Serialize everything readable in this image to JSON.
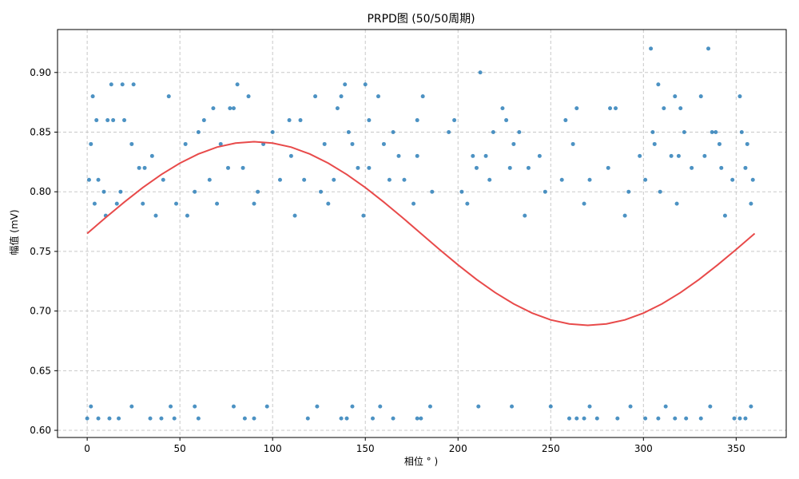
{
  "chart_data": {
    "type": "scatter",
    "title": "PRPD图 (50/50周期)",
    "xlabel": "相位 ° )",
    "ylabel": "幅值 (mV)",
    "xlim": [
      -16,
      377
    ],
    "ylim": [
      0.594,
      0.936
    ],
    "x_ticks": [
      0,
      50,
      100,
      150,
      200,
      250,
      300,
      350
    ],
    "y_ticks": [
      0.6,
      0.65,
      0.7,
      0.75,
      0.8,
      0.85,
      0.9
    ],
    "grid": true,
    "legend": "none",
    "colors": {
      "scatter": "#1f77b4",
      "curve": "#e84a4a",
      "grid": "#c8c8c8",
      "axis": "#000000"
    },
    "series": [
      {
        "type": "scatter",
        "points": [
          [
            304,
            0.92
          ],
          [
            335,
            0.92
          ],
          [
            212,
            0.9
          ],
          [
            3,
            0.88
          ],
          [
            13,
            0.89
          ],
          [
            19,
            0.89
          ],
          [
            25,
            0.89
          ],
          [
            44,
            0.88
          ],
          [
            81,
            0.89
          ],
          [
            87,
            0.88
          ],
          [
            137,
            0.88
          ],
          [
            139,
            0.89
          ],
          [
            150,
            0.89
          ],
          [
            157,
            0.88
          ],
          [
            181,
            0.88
          ],
          [
            308,
            0.89
          ],
          [
            317,
            0.88
          ],
          [
            331,
            0.88
          ],
          [
            352,
            0.88
          ],
          [
            5,
            0.86
          ],
          [
            11,
            0.86
          ],
          [
            14,
            0.86
          ],
          [
            20,
            0.86
          ],
          [
            60,
            0.85
          ],
          [
            63,
            0.86
          ],
          [
            68,
            0.87
          ],
          [
            77,
            0.87
          ],
          [
            79,
            0.87
          ],
          [
            100,
            0.85
          ],
          [
            109,
            0.86
          ],
          [
            115,
            0.86
          ],
          [
            123,
            0.88
          ],
          [
            135,
            0.87
          ],
          [
            141,
            0.85
          ],
          [
            152,
            0.86
          ],
          [
            165,
            0.85
          ],
          [
            178,
            0.86
          ],
          [
            195,
            0.85
          ],
          [
            198,
            0.86
          ],
          [
            219,
            0.85
          ],
          [
            224,
            0.87
          ],
          [
            226,
            0.86
          ],
          [
            233,
            0.85
          ],
          [
            258,
            0.86
          ],
          [
            264,
            0.87
          ],
          [
            282,
            0.87
          ],
          [
            285,
            0.87
          ],
          [
            305,
            0.85
          ],
          [
            311,
            0.87
          ],
          [
            320,
            0.87
          ],
          [
            322,
            0.85
          ],
          [
            337,
            0.85
          ],
          [
            339,
            0.85
          ],
          [
            353,
            0.85
          ],
          [
            2,
            0.84
          ],
          [
            24,
            0.84
          ],
          [
            35,
            0.83
          ],
          [
            53,
            0.84
          ],
          [
            72,
            0.84
          ],
          [
            95,
            0.84
          ],
          [
            110,
            0.83
          ],
          [
            128,
            0.84
          ],
          [
            143,
            0.84
          ],
          [
            160,
            0.84
          ],
          [
            168,
            0.83
          ],
          [
            178,
            0.83
          ],
          [
            208,
            0.83
          ],
          [
            215,
            0.83
          ],
          [
            230,
            0.84
          ],
          [
            244,
            0.83
          ],
          [
            262,
            0.84
          ],
          [
            298,
            0.83
          ],
          [
            306,
            0.84
          ],
          [
            315,
            0.83
          ],
          [
            319,
            0.83
          ],
          [
            333,
            0.83
          ],
          [
            341,
            0.84
          ],
          [
            356,
            0.84
          ],
          [
            1,
            0.81
          ],
          [
            6,
            0.81
          ],
          [
            9,
            0.8
          ],
          [
            18,
            0.8
          ],
          [
            28,
            0.82
          ],
          [
            31,
            0.82
          ],
          [
            41,
            0.81
          ],
          [
            58,
            0.8
          ],
          [
            66,
            0.81
          ],
          [
            76,
            0.82
          ],
          [
            84,
            0.82
          ],
          [
            92,
            0.8
          ],
          [
            104,
            0.81
          ],
          [
            117,
            0.81
          ],
          [
            126,
            0.8
          ],
          [
            133,
            0.81
          ],
          [
            146,
            0.82
          ],
          [
            152,
            0.82
          ],
          [
            163,
            0.81
          ],
          [
            171,
            0.81
          ],
          [
            186,
            0.8
          ],
          [
            202,
            0.8
          ],
          [
            210,
            0.82
          ],
          [
            217,
            0.81
          ],
          [
            228,
            0.82
          ],
          [
            238,
            0.82
          ],
          [
            247,
            0.8
          ],
          [
            256,
            0.81
          ],
          [
            271,
            0.81
          ],
          [
            281,
            0.82
          ],
          [
            292,
            0.8
          ],
          [
            301,
            0.81
          ],
          [
            309,
            0.8
          ],
          [
            326,
            0.82
          ],
          [
            342,
            0.82
          ],
          [
            348,
            0.81
          ],
          [
            355,
            0.82
          ],
          [
            359,
            0.81
          ],
          [
            4,
            0.79
          ],
          [
            10,
            0.78
          ],
          [
            16,
            0.79
          ],
          [
            30,
            0.79
          ],
          [
            37,
            0.78
          ],
          [
            48,
            0.79
          ],
          [
            54,
            0.78
          ],
          [
            70,
            0.79
          ],
          [
            90,
            0.79
          ],
          [
            112,
            0.78
          ],
          [
            130,
            0.79
          ],
          [
            149,
            0.78
          ],
          [
            176,
            0.79
          ],
          [
            205,
            0.79
          ],
          [
            236,
            0.78
          ],
          [
            268,
            0.79
          ],
          [
            290,
            0.78
          ],
          [
            318,
            0.79
          ],
          [
            344,
            0.78
          ],
          [
            358,
            0.79
          ],
          [
            0,
            0.61
          ],
          [
            6,
            0.61
          ],
          [
            12,
            0.61
          ],
          [
            17,
            0.61
          ],
          [
            34,
            0.61
          ],
          [
            40,
            0.61
          ],
          [
            47,
            0.61
          ],
          [
            60,
            0.61
          ],
          [
            85,
            0.61
          ],
          [
            90,
            0.61
          ],
          [
            119,
            0.61
          ],
          [
            137,
            0.61
          ],
          [
            140,
            0.61
          ],
          [
            154,
            0.61
          ],
          [
            165,
            0.61
          ],
          [
            178,
            0.61
          ],
          [
            180,
            0.61
          ],
          [
            260,
            0.61
          ],
          [
            264,
            0.61
          ],
          [
            268,
            0.61
          ],
          [
            275,
            0.61
          ],
          [
            286,
            0.61
          ],
          [
            301,
            0.61
          ],
          [
            308,
            0.61
          ],
          [
            317,
            0.61
          ],
          [
            323,
            0.61
          ],
          [
            331,
            0.61
          ],
          [
            349,
            0.61
          ],
          [
            352,
            0.61
          ],
          [
            355,
            0.61
          ],
          [
            2,
            0.62
          ],
          [
            24,
            0.62
          ],
          [
            45,
            0.62
          ],
          [
            58,
            0.62
          ],
          [
            79,
            0.62
          ],
          [
            97,
            0.62
          ],
          [
            124,
            0.62
          ],
          [
            143,
            0.62
          ],
          [
            158,
            0.62
          ],
          [
            185,
            0.62
          ],
          [
            211,
            0.62
          ],
          [
            229,
            0.62
          ],
          [
            250,
            0.62
          ],
          [
            271,
            0.62
          ],
          [
            293,
            0.62
          ],
          [
            312,
            0.62
          ],
          [
            336,
            0.62
          ],
          [
            358,
            0.62
          ]
        ]
      },
      {
        "type": "line",
        "equation": "y = 0.765 + 0.077 * sin(x degrees)",
        "points": [
          [
            0,
            0.765
          ],
          [
            10,
            0.7784
          ],
          [
            20,
            0.7913
          ],
          [
            30,
            0.8035
          ],
          [
            40,
            0.8145
          ],
          [
            50,
            0.824
          ],
          [
            60,
            0.8317
          ],
          [
            70,
            0.8374
          ],
          [
            80,
            0.8408
          ],
          [
            90,
            0.842
          ],
          [
            100,
            0.8408
          ],
          [
            110,
            0.8374
          ],
          [
            120,
            0.8317
          ],
          [
            130,
            0.824
          ],
          [
            140,
            0.8145
          ],
          [
            150,
            0.8035
          ],
          [
            160,
            0.7913
          ],
          [
            170,
            0.7784
          ],
          [
            180,
            0.765
          ],
          [
            190,
            0.7516
          ],
          [
            200,
            0.7387
          ],
          [
            210,
            0.7265
          ],
          [
            220,
            0.7155
          ],
          [
            230,
            0.706
          ],
          [
            240,
            0.6983
          ],
          [
            250,
            0.6926
          ],
          [
            260,
            0.6892
          ],
          [
            270,
            0.688
          ],
          [
            280,
            0.6892
          ],
          [
            290,
            0.6926
          ],
          [
            300,
            0.6983
          ],
          [
            310,
            0.706
          ],
          [
            320,
            0.7155
          ],
          [
            330,
            0.7265
          ],
          [
            340,
            0.7387
          ],
          [
            350,
            0.7516
          ],
          [
            360,
            0.765
          ]
        ]
      }
    ]
  }
}
